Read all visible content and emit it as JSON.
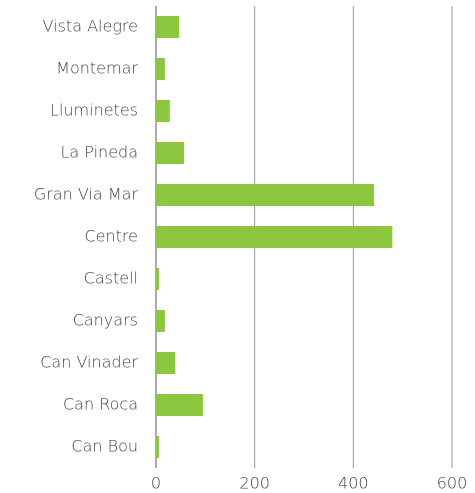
{
  "chart_data": {
    "type": "bar",
    "orientation": "horizontal",
    "categories": [
      "Vista Alegre",
      "Montemar",
      "Lluminetes",
      "La Pineda",
      "Gran Via Mar",
      "Centre",
      "Castell",
      "Canyars",
      "Can Vinader",
      "Can Roca",
      "Can Bou"
    ],
    "values": [
      47,
      18,
      28,
      57,
      442,
      479,
      6,
      18,
      39,
      95,
      6
    ],
    "color": "#8dc63f",
    "xlim": [
      0,
      600
    ],
    "xticks": [
      0,
      200,
      400,
      600
    ],
    "grid": true
  }
}
